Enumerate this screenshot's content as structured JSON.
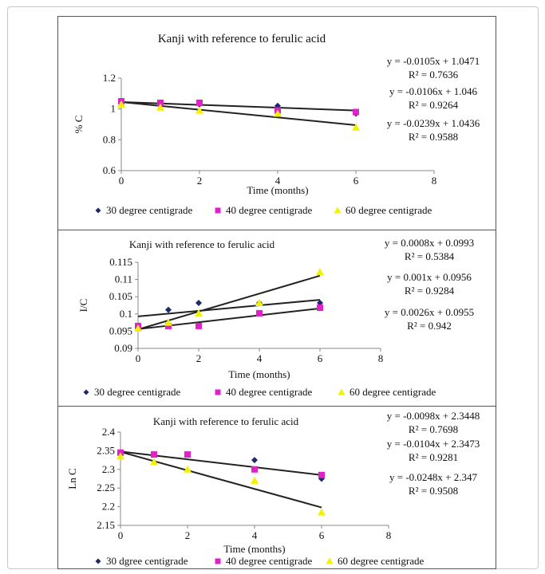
{
  "chart_data": [
    {
      "type": "scatter",
      "title": "Kanji with reference to ferulic acid",
      "xlabel": "Time (months)",
      "ylabel": "% C",
      "xlim": [
        0,
        8
      ],
      "ylim": [
        0.6,
        1.2
      ],
      "xticks": [
        "0",
        "2",
        "4",
        "6",
        "8"
      ],
      "yticks": [
        "0.6",
        "0.8",
        "1",
        "1.2"
      ],
      "legend_position": "bottom",
      "series": [
        {
          "name": "30 degree centigrade",
          "color": "#1f2a6b",
          "marker": "diamond",
          "x": [
            0,
            1,
            2,
            4,
            6
          ],
          "y": [
            1.04,
            1.03,
            1.03,
            1.02,
            0.97
          ]
        },
        {
          "name": "40 degree centigrade",
          "color": "#e020c8",
          "marker": "square",
          "x": [
            0,
            1,
            2,
            4,
            6
          ],
          "y": [
            1.05,
            1.04,
            1.04,
            0.99,
            0.98
          ]
        },
        {
          "name": "60 degree centigrade",
          "color": "#f2f200",
          "marker": "triangle",
          "x": [
            0,
            1,
            2,
            4,
            6
          ],
          "y": [
            1.03,
            1.01,
            0.99,
            0.97,
            0.88
          ]
        }
      ],
      "trendlines": [
        {
          "x0": 0,
          "y0": 1.045,
          "x1": 6,
          "y1": 0.99
        },
        {
          "x0": 0,
          "y0": 1.045,
          "x1": 6,
          "y1": 0.895
        }
      ],
      "equations": [
        "y = -0.0105x + 1.0471",
        "R² = 0.7636",
        "y = -0.0106x + 1.046",
        "R² = 0.9264",
        "y = -0.0239x + 1.0436",
        "R² = 0.9588"
      ]
    },
    {
      "type": "scatter",
      "title": "Kanji with reference to ferulic acid",
      "xlabel": "Time (months)",
      "ylabel": "I/C",
      "xlim": [
        0,
        8
      ],
      "ylim": [
        0.09,
        0.115
      ],
      "xticks": [
        "0",
        "2",
        "4",
        "6",
        "8"
      ],
      "yticks": [
        "0.09",
        "0.095",
        "0.1",
        "0.105",
        "0.11",
        "0.115"
      ],
      "legend_position": "bottom",
      "series": [
        {
          "name": "30 degree centigrade",
          "color": "#1f2a6b",
          "marker": "diamond",
          "x": [
            0,
            1,
            2,
            4,
            6
          ],
          "y": [
            0.0965,
            0.1012,
            0.1032,
            0.1032,
            0.1032
          ]
        },
        {
          "name": "40 degree centigrade",
          "color": "#e020c8",
          "marker": "square",
          "x": [
            0,
            1,
            2,
            4,
            6
          ],
          "y": [
            0.0965,
            0.0965,
            0.0965,
            0.1002,
            0.1018
          ]
        },
        {
          "name": "60 degree centigrade",
          "color": "#f2f200",
          "marker": "triangle",
          "x": [
            0,
            1,
            2,
            4,
            6
          ],
          "y": [
            0.0958,
            0.0975,
            0.1002,
            0.1032,
            0.1122
          ]
        }
      ],
      "trendlines": [
        {
          "x0": 0,
          "y0": 0.0993,
          "x1": 6,
          "y1": 0.1041
        },
        {
          "x0": 0,
          "y0": 0.0956,
          "x1": 6,
          "y1": 0.1016
        },
        {
          "x0": 0,
          "y0": 0.0955,
          "x1": 6,
          "y1": 0.1111
        }
      ],
      "equations": [
        "y = 0.0008x + 0.0993",
        "R² = 0.5384",
        "y = 0.001x + 0.0956",
        "R² = 0.9284",
        "y = 0.0026x + 0.0955",
        "R² = 0.942"
      ]
    },
    {
      "type": "scatter",
      "title": "Kanji with reference to ferulic acid",
      "xlabel": "Time (months)",
      "ylabel": "Ln C",
      "xlim": [
        0,
        8
      ],
      "ylim": [
        2.15,
        2.4
      ],
      "xticks": [
        "0",
        "2",
        "4",
        "6",
        "8"
      ],
      "yticks": [
        "2.15",
        "2.2",
        "2.25",
        "2.3",
        "2.35",
        "2.4"
      ],
      "legend_position": "bottom",
      "series": [
        {
          "name": "30 dgree centigrade",
          "color": "#1f2a6b",
          "marker": "diamond",
          "x": [
            0,
            1,
            2,
            4,
            6
          ],
          "y": [
            2.34,
            2.34,
            2.34,
            2.325,
            2.275
          ]
        },
        {
          "name": "40 degree centigrade",
          "color": "#e020c8",
          "marker": "square",
          "x": [
            0,
            1,
            2,
            4,
            6
          ],
          "y": [
            2.345,
            2.34,
            2.34,
            2.3,
            2.285
          ]
        },
        {
          "name": "60 degree centigrade",
          "color": "#f2f200",
          "marker": "triangle",
          "x": [
            0,
            1,
            2,
            4,
            6
          ],
          "y": [
            2.335,
            2.32,
            2.3,
            2.27,
            2.185
          ]
        }
      ],
      "trendlines": [
        {
          "x0": 0,
          "y0": 2.348,
          "x1": 6,
          "y1": 2.285
        },
        {
          "x0": 0,
          "y0": 2.347,
          "x1": 6,
          "y1": 2.198
        }
      ],
      "equations": [
        "y = -0.0098x + 2.3448",
        "R² = 0.7698",
        "y = -0.0104x + 2.3473",
        "R² = 0.9281",
        "y = -0.0248x + 2.347",
        "R² = 0.9508"
      ]
    }
  ]
}
